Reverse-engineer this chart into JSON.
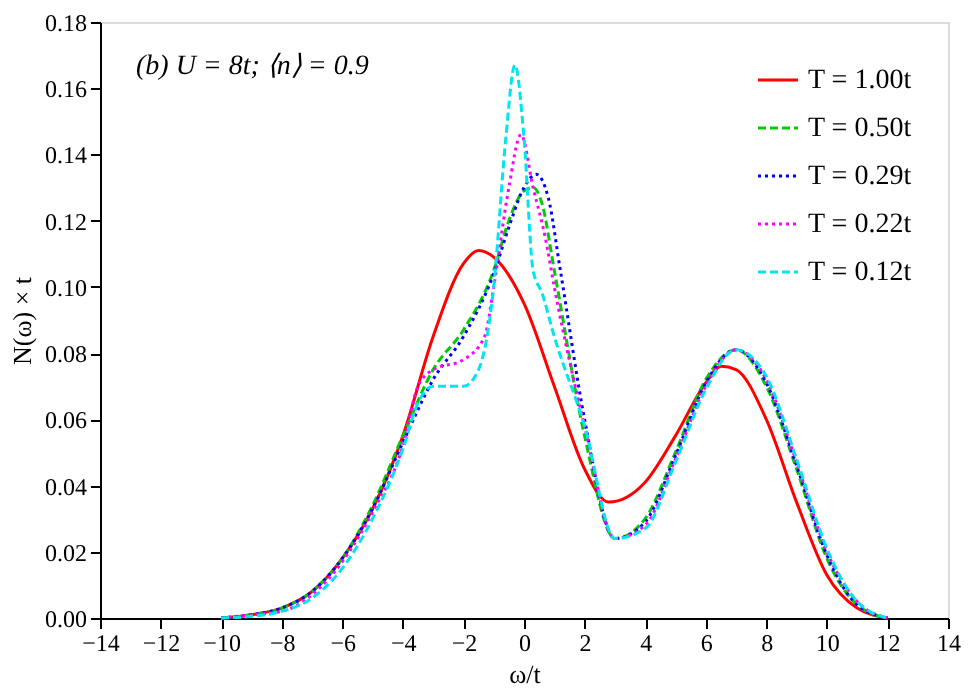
{
  "chart_data": {
    "type": "line",
    "xlabel": "ω/t",
    "ylabel": "N(ω) × t",
    "annotations": [
      "(b)   U = 8t; ⟨n⟩ = 0.9"
    ],
    "xlim": [
      -14,
      14
    ],
    "xticks": [
      -14,
      -12,
      -10,
      -8,
      -6,
      -4,
      -2,
      0,
      2,
      4,
      6,
      8,
      10,
      12,
      14
    ],
    "ylim": [
      0,
      0.18
    ],
    "yticks": [
      {
        "value": 0,
        "label": "0.00"
      },
      {
        "value": 0.02,
        "label": "0.02"
      },
      {
        "value": 0.04,
        "label": "0.04"
      },
      {
        "value": 0.06,
        "label": "0.06"
      },
      {
        "value": 0.08,
        "label": "0.08"
      },
      {
        "value": 0.1,
        "label": "0.10"
      },
      {
        "value": 0.12,
        "label": "0.12"
      },
      {
        "value": 0.14,
        "label": "0.14"
      },
      {
        "value": 0.16,
        "label": "0.16"
      },
      {
        "value": 0.18,
        "label": "0.18"
      }
    ],
    "grid": false,
    "legend": "top right",
    "marker": "none",
    "series": [
      {
        "name": "T = 1.00t",
        "color": "#ff0000",
        "line_style": "solid",
        "x": [
          -10,
          -9,
          -8,
          -7,
          -6,
          -5,
          -4,
          -3,
          -2,
          -1.5,
          -1,
          0,
          1,
          2,
          2.8,
          4,
          5,
          6,
          6.5,
          7,
          8,
          9,
          10,
          11,
          12
        ],
        "values": [
          0,
          0.001,
          0.003,
          0.008,
          0.018,
          0.033,
          0.055,
          0.085,
          0.107,
          0.111,
          0.109,
          0.095,
          0.07,
          0.045,
          0.035,
          0.041,
          0.055,
          0.071,
          0.076,
          0.075,
          0.06,
          0.035,
          0.013,
          0.003,
          0
        ]
      },
      {
        "name": "T = 0.50t",
        "color": "#00cc00",
        "line_style": "dashed",
        "x": [
          -10,
          -9,
          -8,
          -7,
          -6,
          -5,
          -4,
          -3,
          -2,
          -1,
          -0.5,
          0,
          0.3,
          0.6,
          1,
          2,
          3,
          4,
          5,
          6,
          7,
          8,
          9,
          10,
          11,
          12
        ],
        "values": [
          0,
          0.001,
          0.003,
          0.008,
          0.018,
          0.034,
          0.055,
          0.075,
          0.087,
          0.105,
          0.12,
          0.129,
          0.13,
          0.125,
          0.105,
          0.055,
          0.024,
          0.03,
          0.05,
          0.072,
          0.081,
          0.07,
          0.045,
          0.018,
          0.004,
          0
        ]
      },
      {
        "name": "T = 0.29t",
        "color": "#0000ff",
        "line_style": "dotted",
        "x": [
          -10,
          -9,
          -8,
          -7,
          -6,
          -5,
          -4,
          -3,
          -2,
          -1,
          -0.5,
          0,
          0.4,
          0.8,
          1.2,
          2,
          3,
          4,
          5,
          6,
          7,
          8,
          9,
          10,
          11,
          12
        ],
        "values": [
          0,
          0.001,
          0.003,
          0.008,
          0.018,
          0.033,
          0.053,
          0.072,
          0.085,
          0.104,
          0.118,
          0.13,
          0.134,
          0.127,
          0.105,
          0.06,
          0.024,
          0.029,
          0.049,
          0.071,
          0.081,
          0.071,
          0.046,
          0.019,
          0.004,
          0
        ]
      },
      {
        "name": "T = 0.22t",
        "color": "#ff00ff",
        "line_style": "dotted",
        "x": [
          -10,
          -9,
          -8,
          -7,
          -6,
          -5,
          -4,
          -3.5,
          -3,
          -2,
          -1.3,
          -1,
          -0.5,
          -0.1,
          0.3,
          0.7,
          1,
          2,
          3,
          4,
          5,
          6,
          7,
          8,
          9,
          10,
          11,
          12
        ],
        "values": [
          0,
          0.001,
          0.002,
          0.007,
          0.017,
          0.032,
          0.052,
          0.07,
          0.075,
          0.078,
          0.085,
          0.1,
          0.13,
          0.146,
          0.13,
          0.115,
          0.1,
          0.058,
          0.024,
          0.028,
          0.048,
          0.07,
          0.081,
          0.072,
          0.047,
          0.02,
          0.005,
          0
        ]
      },
      {
        "name": "T = 0.12t",
        "color": "#00e5ee",
        "line_style": "dashed",
        "x": [
          -10,
          -9,
          -8,
          -7,
          -6,
          -5,
          -4,
          -3.5,
          -3,
          -2,
          -1.5,
          -1,
          -0.6,
          -0.3,
          0,
          0.3,
          0.6,
          1,
          2,
          3,
          4,
          5,
          6,
          7,
          8,
          9,
          10,
          11,
          12
        ],
        "values": [
          0,
          0.0005,
          0.002,
          0.006,
          0.015,
          0.03,
          0.051,
          0.065,
          0.07,
          0.07,
          0.075,
          0.1,
          0.145,
          0.167,
          0.145,
          0.105,
          0.098,
          0.085,
          0.058,
          0.024,
          0.027,
          0.047,
          0.069,
          0.081,
          0.073,
          0.048,
          0.021,
          0.005,
          0
        ]
      }
    ]
  }
}
